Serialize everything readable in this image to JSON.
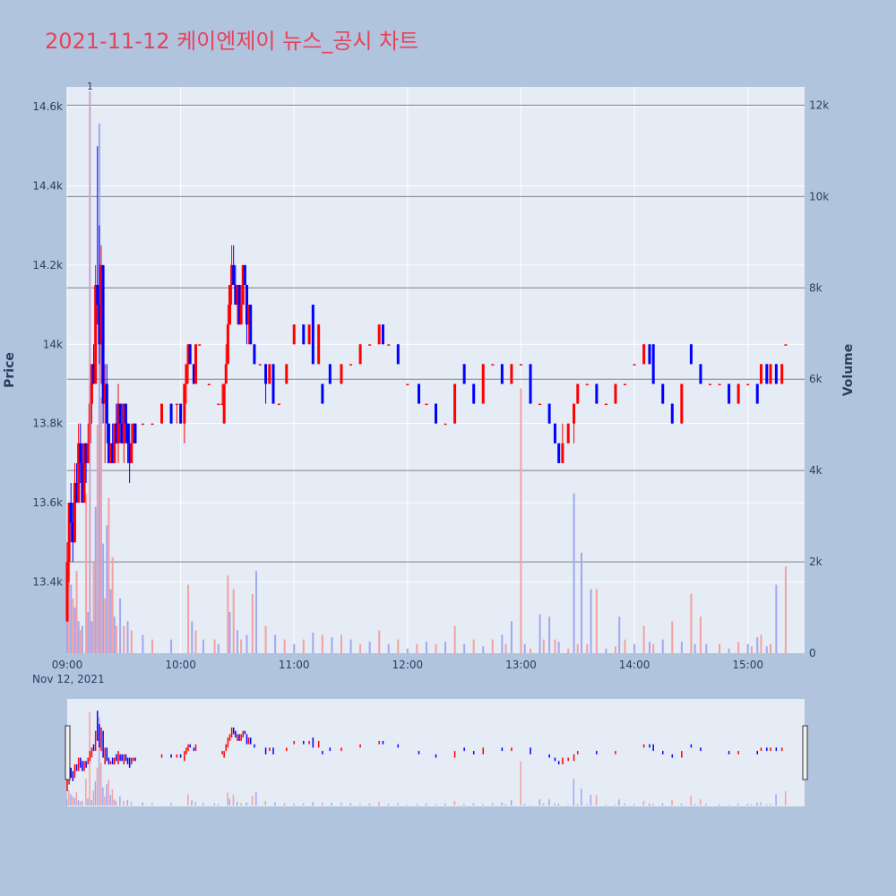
{
  "title": "2021-11-12 케이엔제이 뉴스_공시 차트",
  "colors": {
    "background": "#b0c4de",
    "plot_bg": "#e5ecf6",
    "up": "#ff0000",
    "down": "#0000ff",
    "title": "#e8425a",
    "ref_line": "#808080"
  },
  "chart_data": {
    "type": "candlestick",
    "date_label": "Nov 12, 2021",
    "ylabel": "Price",
    "y2label": "Volume",
    "ylim": [
      13220,
      14650
    ],
    "y2lim": [
      0,
      12400
    ],
    "price_ticks": [
      13400,
      13600,
      13800,
      14000,
      14200,
      14400,
      14600
    ],
    "price_tick_labels": [
      "13.4k",
      "13.6k",
      "13.8k",
      "14k",
      "14.2k",
      "14.4k",
      "14.6k"
    ],
    "volume_ticks": [
      0,
      2000,
      4000,
      6000,
      8000,
      10000,
      12000
    ],
    "volume_tick_labels": [
      "0",
      "2k",
      "4k",
      "6k",
      "8k",
      "10k",
      "12k"
    ],
    "x_ticks": [
      "09:00",
      "10:00",
      "11:00",
      "12:00",
      "13:00",
      "14:00",
      "15:00"
    ],
    "volume_reference_lines": [
      2000,
      4000,
      6000,
      8000,
      10000,
      12000
    ],
    "annotation": {
      "time": "09:12",
      "text": "1"
    },
    "candles": [
      [
        "09:00",
        13300,
        13500,
        13300,
        13450
      ],
      [
        "09:01",
        13450,
        13600,
        13400,
        13600
      ],
      [
        "09:02",
        13600,
        13650,
        13500,
        13550
      ],
      [
        "09:03",
        13550,
        13600,
        13450,
        13500
      ],
      [
        "09:04",
        13500,
        13700,
        13500,
        13650
      ],
      [
        "09:05",
        13650,
        13700,
        13600,
        13600
      ],
      [
        "09:06",
        13600,
        13800,
        13600,
        13750
      ],
      [
        "09:07",
        13750,
        13800,
        13650,
        13700
      ],
      [
        "09:08",
        13700,
        13750,
        13600,
        13600
      ],
      [
        "09:09",
        13600,
        13750,
        13600,
        13750
      ],
      [
        "09:10",
        13750,
        13750,
        13650,
        13700
      ],
      [
        "09:11",
        13700,
        13800,
        13700,
        13750
      ],
      [
        "09:12",
        13750,
        13900,
        13750,
        13850
      ],
      [
        "09:13",
        13850,
        13950,
        13800,
        13950
      ],
      [
        "09:14",
        13950,
        14000,
        13900,
        13900
      ],
      [
        "09:15",
        13900,
        14200,
        13900,
        14150
      ],
      [
        "09:16",
        14150,
        14500,
        14050,
        14100
      ],
      [
        "09:17",
        14100,
        14300,
        13950,
        14000
      ],
      [
        "09:18",
        14000,
        14250,
        13900,
        14200
      ],
      [
        "09:19",
        14200,
        14200,
        13800,
        13850
      ],
      [
        "09:20",
        13850,
        13950,
        13700,
        13900
      ],
      [
        "09:21",
        13900,
        13950,
        13750,
        13800
      ],
      [
        "09:22",
        13800,
        13800,
        13700,
        13700
      ],
      [
        "09:23",
        13700,
        13750,
        13700,
        13750
      ],
      [
        "09:24",
        13750,
        13800,
        13700,
        13700
      ],
      [
        "09:25",
        13700,
        13800,
        13700,
        13800
      ],
      [
        "09:26",
        13800,
        13850,
        13750,
        13750
      ],
      [
        "09:27",
        13750,
        13900,
        13700,
        13850
      ],
      [
        "09:28",
        13850,
        13850,
        13750,
        13800
      ],
      [
        "09:29",
        13800,
        13850,
        13750,
        13750
      ],
      [
        "09:30",
        13750,
        13850,
        13700,
        13850
      ],
      [
        "09:31",
        13850,
        13850,
        13750,
        13800
      ],
      [
        "09:32",
        13800,
        13800,
        13700,
        13750
      ],
      [
        "09:33",
        13750,
        13800,
        13650,
        13700
      ],
      [
        "09:34",
        13700,
        13800,
        13700,
        13750
      ],
      [
        "09:35",
        13750,
        13800,
        13750,
        13800
      ],
      [
        "09:36",
        13800,
        13800,
        13750,
        13750
      ],
      [
        "09:40",
        13800,
        13800,
        13800,
        13800
      ],
      [
        "09:45",
        13800,
        13800,
        13800,
        13800
      ],
      [
        "09:50",
        13800,
        13850,
        13800,
        13850
      ],
      [
        "09:55",
        13850,
        13850,
        13800,
        13800
      ],
      [
        "09:58",
        13850,
        13850,
        13800,
        13850
      ],
      [
        "10:00",
        13850,
        13850,
        13800,
        13800
      ],
      [
        "10:02",
        13800,
        13900,
        13750,
        13900
      ],
      [
        "10:03",
        13900,
        13950,
        13850,
        13950
      ],
      [
        "10:04",
        13950,
        14000,
        13900,
        14000
      ],
      [
        "10:05",
        14000,
        14000,
        13950,
        13950
      ],
      [
        "10:07",
        13950,
        13950,
        13900,
        13900
      ],
      [
        "10:08",
        13900,
        14000,
        13900,
        14000
      ],
      [
        "10:10",
        14000,
        14000,
        14000,
        14000
      ],
      [
        "10:15",
        13900,
        13900,
        13900,
        13900
      ],
      [
        "10:20",
        13850,
        13850,
        13850,
        13850
      ],
      [
        "10:22",
        13850,
        13900,
        13850,
        13850
      ],
      [
        "10:23",
        13800,
        13900,
        13800,
        13900
      ],
      [
        "10:24",
        13900,
        14000,
        13900,
        13950
      ],
      [
        "10:25",
        13950,
        14100,
        13950,
        14050
      ],
      [
        "10:26",
        14050,
        14150,
        14050,
        14150
      ],
      [
        "10:27",
        14150,
        14250,
        14100,
        14200
      ],
      [
        "10:28",
        14200,
        14250,
        14150,
        14150
      ],
      [
        "10:29",
        14150,
        14200,
        14100,
        14100
      ],
      [
        "10:30",
        14100,
        14150,
        14050,
        14150
      ],
      [
        "10:31",
        14150,
        14150,
        14050,
        14050
      ],
      [
        "10:32",
        14050,
        14150,
        14050,
        14100
      ],
      [
        "10:33",
        14100,
        14200,
        14100,
        14200
      ],
      [
        "10:34",
        14200,
        14200,
        14150,
        14150
      ],
      [
        "10:35",
        14150,
        14150,
        14000,
        14050
      ],
      [
        "10:36",
        14050,
        14100,
        14000,
        14100
      ],
      [
        "10:37",
        14100,
        14100,
        14000,
        14000
      ],
      [
        "10:39",
        14000,
        14000,
        13950,
        13950
      ],
      [
        "10:42",
        13950,
        13950,
        13950,
        13950
      ],
      [
        "10:45",
        13950,
        13950,
        13850,
        13900
      ],
      [
        "10:47",
        13900,
        13950,
        13900,
        13950
      ],
      [
        "10:49",
        13950,
        13950,
        13850,
        13850
      ],
      [
        "10:52",
        13850,
        13850,
        13850,
        13850
      ],
      [
        "10:56",
        13900,
        13950,
        13900,
        13950
      ],
      [
        "11:00",
        14000,
        14050,
        14000,
        14050
      ],
      [
        "11:05",
        14050,
        14050,
        14000,
        14000
      ],
      [
        "11:08",
        14000,
        14050,
        14000,
        14050
      ],
      [
        "11:10",
        14100,
        14100,
        13950,
        13950
      ],
      [
        "11:13",
        13950,
        14050,
        13950,
        14050
      ],
      [
        "11:15",
        13900,
        13900,
        13850,
        13850
      ],
      [
        "11:19",
        13950,
        13950,
        13900,
        13900
      ],
      [
        "11:25",
        13900,
        13950,
        13900,
        13950
      ],
      [
        "11:30",
        13950,
        13950,
        13950,
        13950
      ],
      [
        "11:35",
        13950,
        14000,
        13950,
        14000
      ],
      [
        "11:40",
        14000,
        14000,
        14000,
        14000
      ],
      [
        "11:45",
        14000,
        14050,
        14000,
        14050
      ],
      [
        "11:47",
        14050,
        14050,
        14000,
        14000
      ],
      [
        "11:50",
        14000,
        14000,
        14000,
        14000
      ],
      [
        "11:55",
        14000,
        14000,
        13950,
        13950
      ],
      [
        "12:00",
        13900,
        13900,
        13900,
        13900
      ],
      [
        "12:06",
        13900,
        13900,
        13850,
        13850
      ],
      [
        "12:10",
        13850,
        13850,
        13850,
        13850
      ],
      [
        "12:15",
        13850,
        13850,
        13800,
        13800
      ],
      [
        "12:20",
        13800,
        13800,
        13800,
        13800
      ],
      [
        "12:25",
        13800,
        13900,
        13800,
        13900
      ],
      [
        "12:30",
        13950,
        13950,
        13900,
        13900
      ],
      [
        "12:35",
        13900,
        13900,
        13850,
        13850
      ],
      [
        "12:40",
        13850,
        13950,
        13850,
        13950
      ],
      [
        "12:45",
        13950,
        13950,
        13950,
        13950
      ],
      [
        "12:50",
        13950,
        13950,
        13900,
        13900
      ],
      [
        "12:55",
        13900,
        13950,
        13900,
        13950
      ],
      [
        "13:00",
        13950,
        13950,
        13950,
        13950
      ],
      [
        "13:05",
        13950,
        13950,
        13850,
        13850
      ],
      [
        "13:10",
        13850,
        13850,
        13850,
        13850
      ],
      [
        "13:15",
        13850,
        13850,
        13800,
        13800
      ],
      [
        "13:18",
        13800,
        13800,
        13750,
        13750
      ],
      [
        "13:20",
        13750,
        13750,
        13700,
        13700
      ],
      [
        "13:22",
        13700,
        13800,
        13700,
        13750
      ],
      [
        "13:25",
        13750,
        13800,
        13750,
        13800
      ],
      [
        "13:28",
        13800,
        13850,
        13750,
        13850
      ],
      [
        "13:30",
        13850,
        13900,
        13850,
        13900
      ],
      [
        "13:35",
        13900,
        13900,
        13900,
        13900
      ],
      [
        "13:40",
        13900,
        13900,
        13850,
        13850
      ],
      [
        "13:45",
        13850,
        13850,
        13850,
        13850
      ],
      [
        "13:50",
        13850,
        13900,
        13850,
        13900
      ],
      [
        "13:55",
        13900,
        13900,
        13900,
        13900
      ],
      [
        "14:00",
        13950,
        13950,
        13950,
        13950
      ],
      [
        "14:05",
        13950,
        14000,
        13950,
        14000
      ],
      [
        "14:08",
        14000,
        14000,
        13950,
        13950
      ],
      [
        "14:10",
        14000,
        14000,
        13900,
        13900
      ],
      [
        "14:15",
        13900,
        13900,
        13850,
        13850
      ],
      [
        "14:20",
        13850,
        13850,
        13800,
        13800
      ],
      [
        "14:25",
        13800,
        13900,
        13800,
        13900
      ],
      [
        "14:30",
        14000,
        14000,
        13950,
        13950
      ],
      [
        "14:35",
        13950,
        13950,
        13900,
        13900
      ],
      [
        "14:40",
        13900,
        13900,
        13900,
        13900
      ],
      [
        "14:45",
        13900,
        13900,
        13900,
        13900
      ],
      [
        "14:50",
        13900,
        13900,
        13850,
        13850
      ],
      [
        "14:55",
        13850,
        13900,
        13850,
        13900
      ],
      [
        "15:00",
        13900,
        13900,
        13900,
        13900
      ],
      [
        "15:05",
        13900,
        13900,
        13850,
        13850
      ],
      [
        "15:07",
        13900,
        13950,
        13900,
        13950
      ],
      [
        "15:10",
        13950,
        13950,
        13900,
        13900
      ],
      [
        "15:12",
        13900,
        13950,
        13900,
        13950
      ],
      [
        "15:15",
        13950,
        13950,
        13900,
        13900
      ],
      [
        "15:18",
        13900,
        13950,
        13900,
        13950
      ],
      [
        "15:20",
        14000,
        14000,
        14000,
        14000
      ]
    ],
    "volumes": [
      [
        "09:00",
        800
      ],
      [
        "09:01",
        2000
      ],
      [
        "09:02",
        1500
      ],
      [
        "09:03",
        1200
      ],
      [
        "09:04",
        1000
      ],
      [
        "09:05",
        1800
      ],
      [
        "09:06",
        700
      ],
      [
        "09:07",
        500
      ],
      [
        "09:08",
        600
      ],
      [
        "09:10",
        3500
      ],
      [
        "09:11",
        900
      ],
      [
        "09:12",
        12300
      ],
      [
        "09:13",
        700
      ],
      [
        "09:14",
        2000
      ],
      [
        "09:15",
        3200
      ],
      [
        "09:16",
        5000
      ],
      [
        "09:17",
        11600
      ],
      [
        "09:18",
        5600
      ],
      [
        "09:19",
        2400
      ],
      [
        "09:20",
        1200
      ],
      [
        "09:21",
        2800
      ],
      [
        "09:22",
        3400
      ],
      [
        "09:23",
        1400
      ],
      [
        "09:24",
        2100
      ],
      [
        "09:25",
        800
      ],
      [
        "09:26",
        600
      ],
      [
        "09:28",
        1200
      ],
      [
        "09:30",
        600
      ],
      [
        "09:32",
        700
      ],
      [
        "09:34",
        500
      ],
      [
        "09:40",
        400
      ],
      [
        "09:45",
        300
      ],
      [
        "09:55",
        300
      ],
      [
        "10:04",
        1500
      ],
      [
        "10:06",
        700
      ],
      [
        "10:08",
        500
      ],
      [
        "10:12",
        300
      ],
      [
        "10:18",
        300
      ],
      [
        "10:20",
        200
      ],
      [
        "10:25",
        1700
      ],
      [
        "10:26",
        900
      ],
      [
        "10:28",
        1400
      ],
      [
        "10:30",
        500
      ],
      [
        "10:32",
        300
      ],
      [
        "10:35",
        400
      ],
      [
        "10:38",
        1300
      ],
      [
        "10:40",
        1800
      ],
      [
        "10:45",
        600
      ],
      [
        "10:50",
        400
      ],
      [
        "10:55",
        300
      ],
      [
        "11:00",
        200
      ],
      [
        "11:05",
        300
      ],
      [
        "11:10",
        450
      ],
      [
        "11:15",
        400
      ],
      [
        "11:20",
        350
      ],
      [
        "11:25",
        400
      ],
      [
        "11:30",
        300
      ],
      [
        "11:35",
        200
      ],
      [
        "11:40",
        250
      ],
      [
        "11:45",
        500
      ],
      [
        "11:50",
        200
      ],
      [
        "11:55",
        300
      ],
      [
        "12:00",
        100
      ],
      [
        "12:05",
        200
      ],
      [
        "12:10",
        250
      ],
      [
        "12:15",
        200
      ],
      [
        "12:20",
        250
      ],
      [
        "12:25",
        600
      ],
      [
        "12:30",
        200
      ],
      [
        "12:35",
        300
      ],
      [
        "12:40",
        150
      ],
      [
        "12:45",
        300
      ],
      [
        "12:50",
        400
      ],
      [
        "12:52",
        200
      ],
      [
        "12:55",
        700
      ],
      [
        "13:00",
        5800
      ],
      [
        "13:02",
        200
      ],
      [
        "13:05",
        100
      ],
      [
        "13:10",
        850
      ],
      [
        "13:12",
        300
      ],
      [
        "13:15",
        800
      ],
      [
        "13:18",
        300
      ],
      [
        "13:20",
        250
      ],
      [
        "13:25",
        100
      ],
      [
        "13:28",
        3500
      ],
      [
        "13:30",
        200
      ],
      [
        "13:32",
        2200
      ],
      [
        "13:35",
        200
      ],
      [
        "13:37",
        1400
      ],
      [
        "13:40",
        1400
      ],
      [
        "13:45",
        100
      ],
      [
        "13:50",
        150
      ],
      [
        "13:52",
        800
      ],
      [
        "13:55",
        300
      ],
      [
        "14:00",
        200
      ],
      [
        "14:05",
        600
      ],
      [
        "14:08",
        250
      ],
      [
        "14:10",
        200
      ],
      [
        "14:15",
        300
      ],
      [
        "14:20",
        700
      ],
      [
        "14:25",
        250
      ],
      [
        "14:30",
        1300
      ],
      [
        "14:32",
        200
      ],
      [
        "14:35",
        800
      ],
      [
        "14:38",
        200
      ],
      [
        "14:45",
        200
      ],
      [
        "14:50",
        100
      ],
      [
        "14:55",
        250
      ],
      [
        "15:00",
        200
      ],
      [
        "15:02",
        150
      ],
      [
        "15:05",
        350
      ],
      [
        "15:07",
        400
      ],
      [
        "15:10",
        150
      ],
      [
        "15:12",
        200
      ],
      [
        "15:15",
        1500
      ],
      [
        "15:20",
        1900
      ]
    ]
  }
}
